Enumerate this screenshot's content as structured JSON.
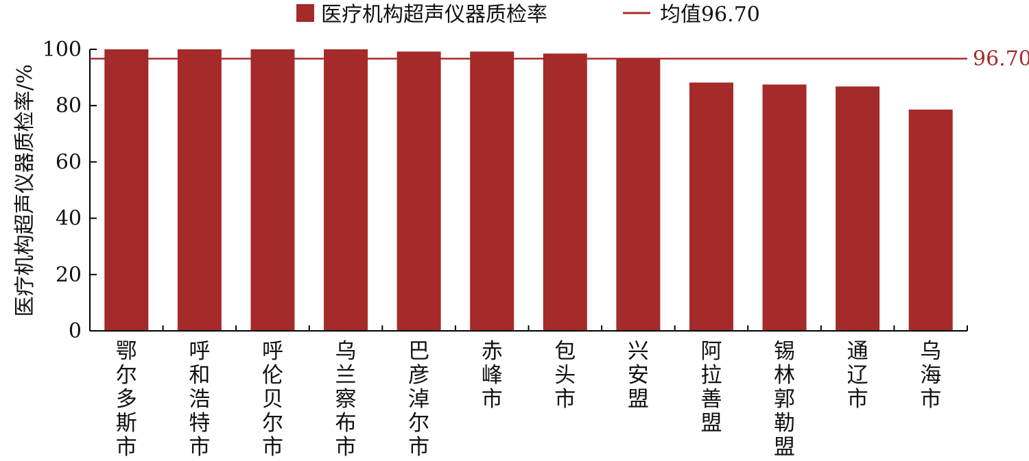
{
  "chart_data": {
    "type": "bar",
    "categories": [
      "鄂尔多斯市",
      "呼和浩特市",
      "呼伦贝尔市",
      "乌兰察布市",
      "巴彦淖尔市",
      "赤峰市",
      "包头市",
      "兴安盟",
      "阿拉善盟",
      "锡林郭勒盟",
      "通辽市",
      "乌海市"
    ],
    "series": [
      {
        "name": "医疗机构超声仪器质检率",
        "values": [
          100,
          100,
          100,
          100,
          99.2,
          99.2,
          98.5,
          96.7,
          88.2,
          87.5,
          86.8,
          78.6
        ]
      }
    ],
    "reference_line": {
      "legend_label": "均值96.70",
      "value": 96.7,
      "value_label": "96.70"
    },
    "ylabel": "医疗机构超声仪器质检率/%",
    "ylim": [
      0,
      100
    ],
    "yticks": [
      0,
      20,
      40,
      60,
      80,
      100
    ],
    "grid": false,
    "legend_position": "top-center",
    "colors": {
      "bar": "#A52A2A",
      "reference_line": "#A52A2A",
      "axis": "#000000"
    }
  }
}
